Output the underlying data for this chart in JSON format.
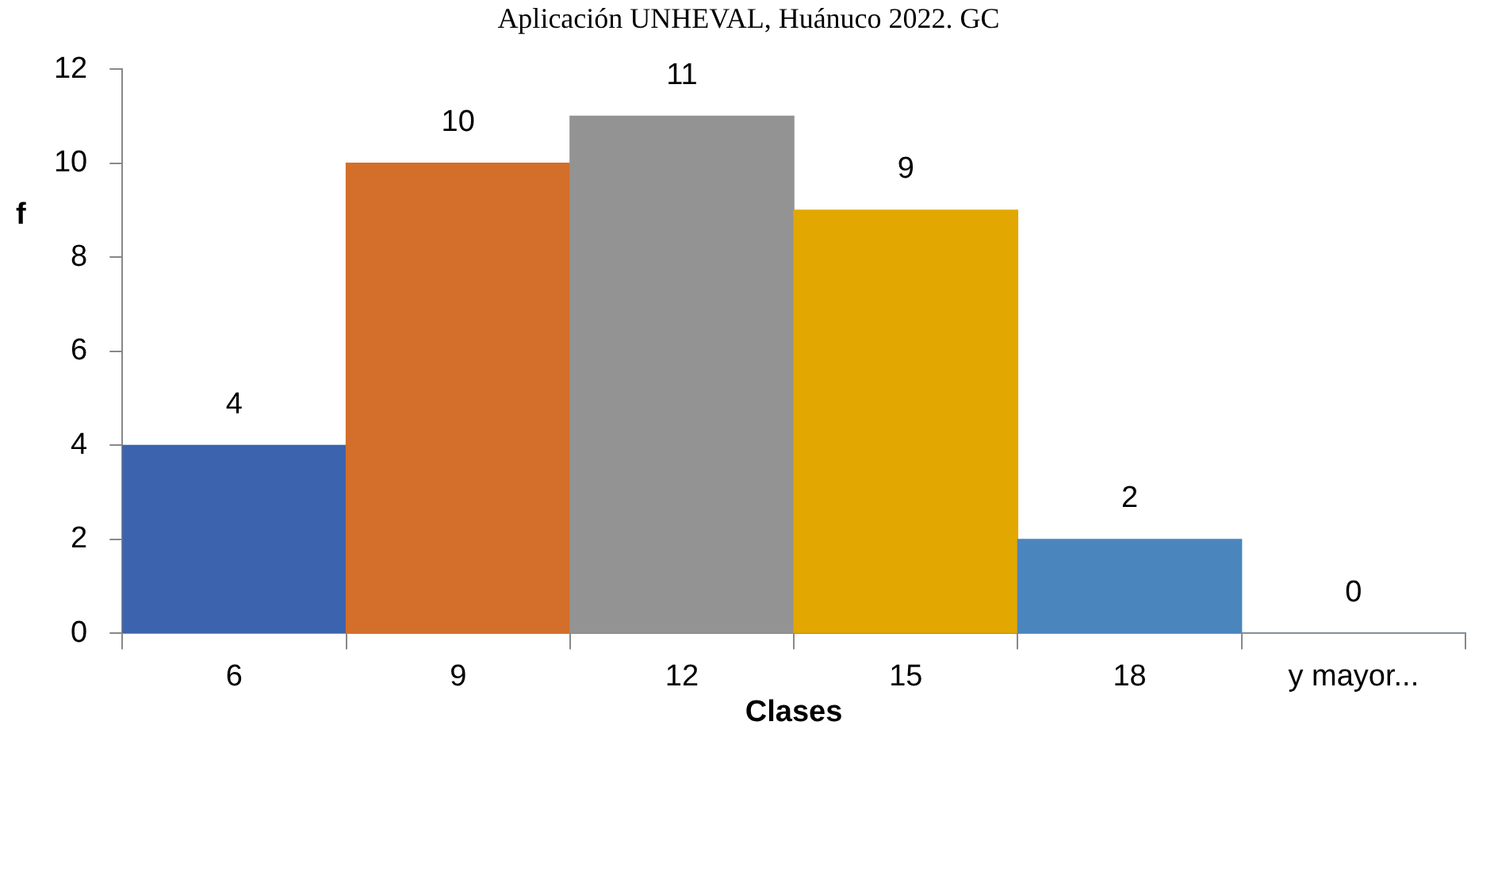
{
  "chart_data": {
    "type": "bar",
    "title": "Aplicación UNHEVAL, Huánuco 2022. GC",
    "xlabel": "Clases",
    "ylabel": "f",
    "categories": [
      "6",
      "9",
      "12",
      "15",
      "18",
      "y mayor..."
    ],
    "values": [
      4,
      10,
      11,
      9,
      2,
      0
    ],
    "colors": [
      "#3c63ad",
      "#d36e2b",
      "#939393",
      "#e2a700",
      "#4a86bd",
      "#6f9bd0"
    ],
    "ylim": [
      0,
      12
    ],
    "yticks": [
      0,
      2,
      4,
      6,
      8,
      10,
      12
    ],
    "grid": false,
    "legend": false,
    "data_labels": true
  }
}
